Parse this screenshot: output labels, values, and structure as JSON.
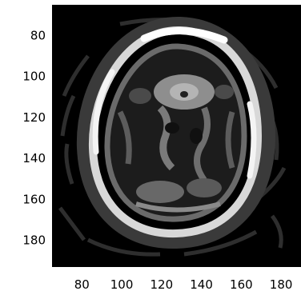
{
  "chart_data": {
    "type": "heatmap",
    "title": "",
    "xlabel": "",
    "ylabel": "",
    "colormap": "gray",
    "xlim": [
      65,
      190
    ],
    "ylim": [
      65,
      193
    ],
    "y_reversed": true,
    "grid": false,
    "xticks": [
      80,
      100,
      120,
      140,
      160,
      180
    ],
    "yticks": [
      80,
      100,
      120,
      140,
      160,
      180
    ],
    "xtick_labels": [
      "80",
      "100",
      "120",
      "140",
      "160",
      "180"
    ],
    "ytick_labels": [
      "80",
      "100",
      "120",
      "140",
      "160",
      "180"
    ],
    "colors": {
      "background": "#000000",
      "shell": "#f2f2f2",
      "inner_light": "#9a9a9a",
      "inner_mid": "#6e6e6e",
      "inner_dark": "#3c3c3c"
    }
  }
}
